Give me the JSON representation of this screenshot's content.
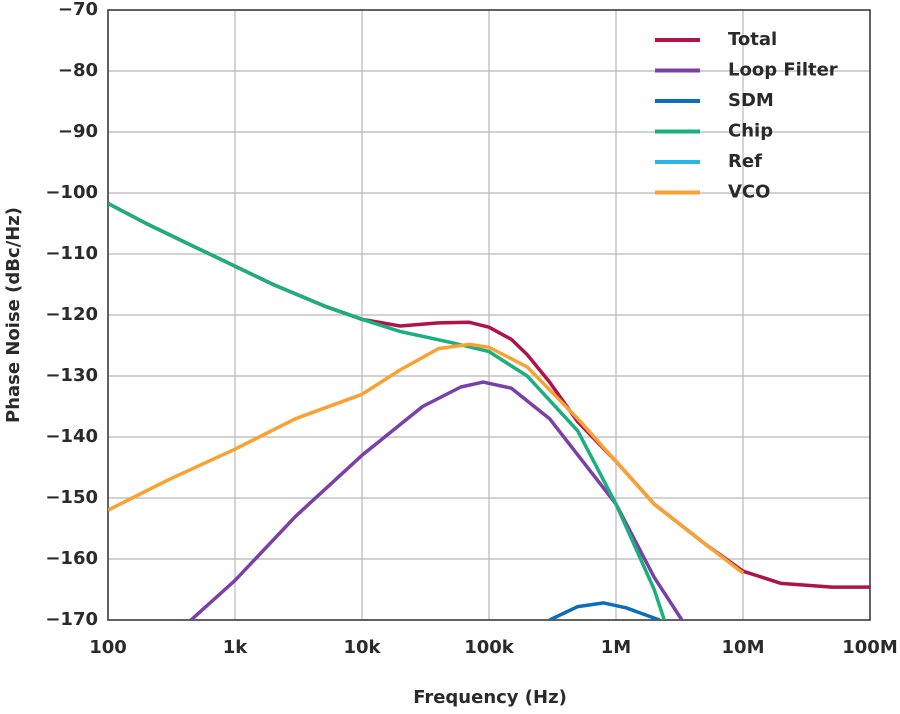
{
  "chart_data": {
    "type": "line",
    "x_label": "Frequency (Hz)",
    "y_label": "Phase Noise (dBc/Hz)",
    "xscale": "log",
    "xlim": [
      100,
      100000000
    ],
    "ylim": [
      -170,
      -70
    ],
    "grid": true,
    "legend": "upper right",
    "xticks": [
      100,
      {
        "value": 1000,
        "label": "1k"
      },
      {
        "value": 10000,
        "label": "10k"
      },
      {
        "value": 100000,
        "label": "100k"
      },
      {
        "value": 1000000,
        "label": "1M"
      },
      {
        "value": 10000000,
        "label": "10M"
      },
      {
        "value": 100000000,
        "label": "100M"
      }
    ],
    "yticks": [
      {
        "value": -170,
        "label": "−170"
      },
      {
        "value": -160,
        "label": "−160"
      },
      {
        "value": -150,
        "label": "−150"
      },
      {
        "value": -140,
        "label": "−140"
      },
      {
        "value": -130,
        "label": "−130"
      },
      {
        "value": -120,
        "label": "−120"
      },
      {
        "value": -110,
        "label": "−110"
      },
      {
        "value": -100,
        "label": "−100"
      },
      {
        "value": -90,
        "label": "−90"
      },
      {
        "value": -80,
        "label": "−80"
      },
      {
        "value": -70,
        "label": "−70"
      }
    ],
    "series": [
      {
        "name": "Total",
        "color": "#b0124a",
        "x": [
          100,
          200,
          500,
          1000,
          2000,
          5000,
          10000,
          20000,
          40000,
          70000,
          100000,
          150000,
          200000,
          300000,
          500000,
          1000000,
          2000000,
          5000000,
          10000000,
          20000000,
          50000000,
          100000000
        ],
        "values": [
          -101.7,
          -105,
          -109,
          -112,
          -115,
          -118.5,
          -120.7,
          -121.8,
          -121.3,
          -121.2,
          -122,
          -124,
          -126.5,
          -131,
          -137.5,
          -144,
          -151,
          -157.5,
          -162,
          -164,
          -164.6,
          -164.6
        ]
      },
      {
        "name": "Loop Filter",
        "color": "#7b3fa8",
        "x": [
          450,
          1000,
          3000,
          10000,
          30000,
          60000,
          90000,
          150000,
          300000,
          1000000,
          2000000,
          3300000
        ],
        "values": [
          -170,
          -163.5,
          -153,
          -143,
          -135,
          -131.8,
          -131,
          -132,
          -137,
          -151,
          -163,
          -170
        ]
      },
      {
        "name": "SDM",
        "color": "#0a6ebd",
        "x": [
          300000,
          500000,
          800000,
          1200000,
          2200000
        ],
        "values": [
          -170,
          -167.8,
          -167.2,
          -168,
          -170
        ]
      },
      {
        "name": "Chip",
        "color": "#1aaf7e",
        "x": [
          100,
          200,
          500,
          1000,
          2000,
          5000,
          10000,
          20000,
          50000,
          100000,
          200000,
          500000,
          1000000,
          2000000,
          2400000
        ],
        "values": [
          -101.7,
          -105,
          -109,
          -112,
          -115,
          -118.5,
          -120.7,
          -122.7,
          -124.5,
          -126,
          -130,
          -139,
          -151,
          -165,
          -170
        ]
      },
      {
        "name": "Ref",
        "color": "#29b6e6",
        "x": [],
        "values": []
      },
      {
        "name": "VCO",
        "color": "#f7a233",
        "x": [
          100,
          300,
          1000,
          3000,
          10000,
          20000,
          40000,
          70000,
          100000,
          200000,
          500000,
          1000000,
          2000000,
          5000000,
          10000000
        ],
        "values": [
          -152,
          -147,
          -142,
          -137,
          -133,
          -129,
          -125.5,
          -124.8,
          -125.3,
          -128.5,
          -137,
          -144,
          -151,
          -157.5,
          -162.3
        ]
      }
    ]
  }
}
